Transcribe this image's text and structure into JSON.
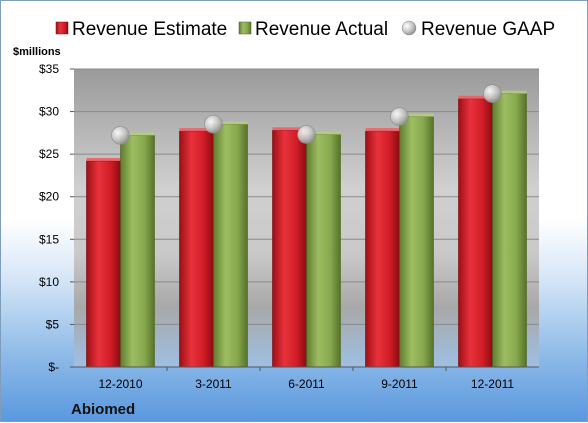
{
  "chart_data": {
    "type": "bar",
    "categories": [
      "12-2010",
      "3-2011",
      "6-2011",
      "9-2011",
      "12-2011"
    ],
    "series": [
      {
        "name": "Revenue Estimate",
        "kind": "bar",
        "values": [
          24.2,
          27.7,
          27.8,
          27.7,
          31.5
        ],
        "color": "#d7202a"
      },
      {
        "name": "Revenue Actual",
        "kind": "bar",
        "values": [
          27.2,
          28.5,
          27.3,
          29.4,
          32.1
        ],
        "color": "#8aaa4e"
      },
      {
        "name": "Revenue GAAP",
        "kind": "marker",
        "values": [
          27.2,
          28.5,
          27.3,
          29.4,
          32.1
        ],
        "color": "#b8b8b8"
      }
    ],
    "ylim": [
      0,
      35
    ],
    "y_ticks": [
      0,
      5,
      10,
      15,
      20,
      25,
      30,
      35
    ],
    "y_tick_labels": [
      "$-",
      "$5",
      "$10",
      "$15",
      "$20",
      "$25",
      "$30",
      "$35"
    ],
    "ylabel": "$millions",
    "xlabel": "",
    "title": "",
    "grid": true,
    "legend_position": "top"
  },
  "company": "Abiomed",
  "colors": {
    "plot_top": "#8c8c8c",
    "plot_mid": "#d4d4d4",
    "gridline": "#8a8a8a"
  }
}
